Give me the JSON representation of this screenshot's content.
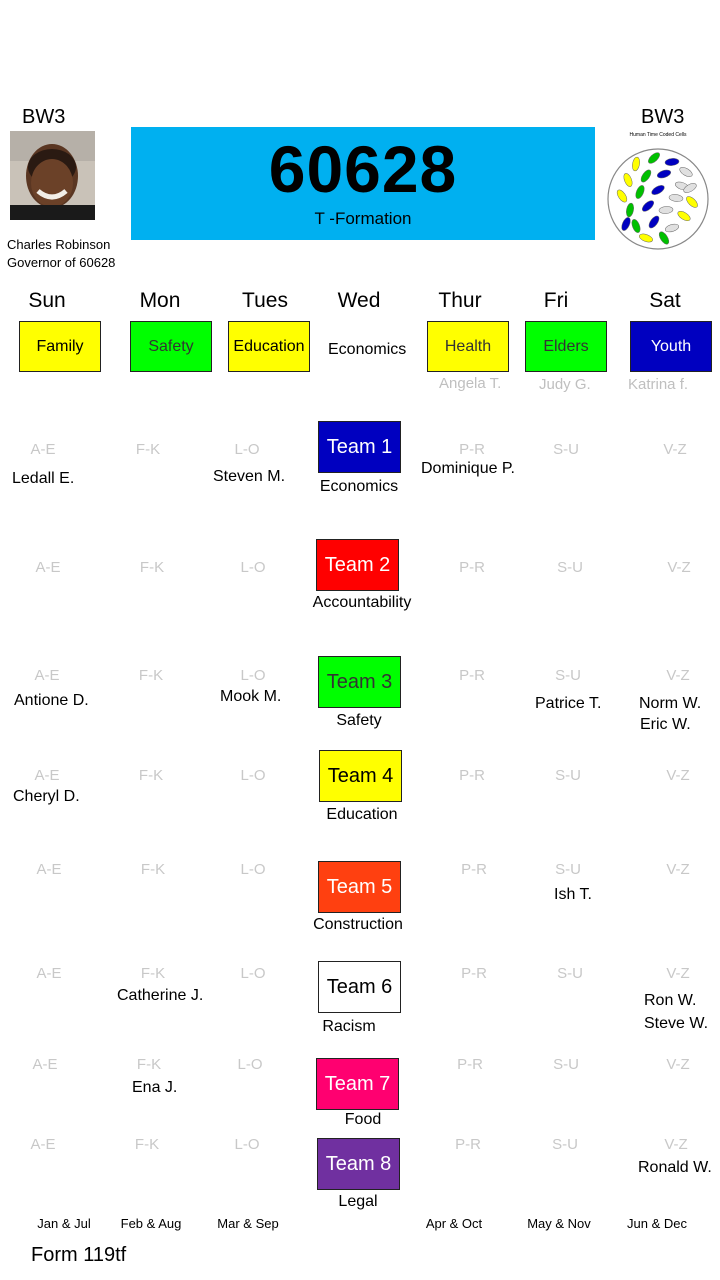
{
  "header": {
    "left_label": "BW3",
    "right_label": "BW3",
    "governor_name": "Charles Robinson",
    "governor_title": "Governor of 60628",
    "zip": "60628",
    "subtitle": "T -Formation",
    "cells_caption": "Human Time Coded Cells"
  },
  "days": [
    "Sun",
    "Mon",
    "Tues",
    "Wed",
    "Thur",
    "Fri",
    "Sat"
  ],
  "day_tags": [
    {
      "label": "Family",
      "color": "#ffff00",
      "text_color": "#000000"
    },
    {
      "label": "Safety",
      "color": "#00ff00",
      "text_color": "#333333"
    },
    {
      "label": "Education",
      "color": "#ffff00",
      "text_color": "#000000"
    },
    {
      "label": "Economics",
      "color": "",
      "text_color": "#000000"
    },
    {
      "label": "Health",
      "color": "#ffff00",
      "text_color": "#333333"
    },
    {
      "label": "Elders",
      "color": "#00ff00",
      "text_color": "#333333"
    },
    {
      "label": "Youth",
      "color": "#0000c0",
      "text_color": "#ffffff"
    }
  ],
  "day_leads": [
    {
      "name": "Angela T."
    },
    {
      "name": "Judy G."
    },
    {
      "name": "Katrina f."
    }
  ],
  "teams": [
    {
      "label": "Team 1",
      "topic": "Economics",
      "color": "#0000c0",
      "text_color": "#ffffff",
      "ranges": [
        "A-E",
        "F-K",
        "L-O",
        "P-R",
        "S-U",
        "V-Z"
      ],
      "members": [
        "Ledall E.",
        "Steven M.",
        "Dominique P."
      ]
    },
    {
      "label": "Team 2",
      "topic": "Accountability",
      "color": "#ff0000",
      "text_color": "#ffffff",
      "ranges": [
        "A-E",
        "F-K",
        "L-O",
        "P-R",
        "S-U",
        "V-Z"
      ],
      "members": []
    },
    {
      "label": "Team 3",
      "topic": "Safety",
      "color": "#00ff00",
      "text_color": "#333333",
      "ranges": [
        "A-E",
        "F-K",
        "L-O",
        "P-R",
        "S-U",
        "V-Z"
      ],
      "members": [
        "Antione D.",
        "Mook M.",
        "Patrice T.",
        "Norm W.",
        "Eric W."
      ]
    },
    {
      "label": "Team 4",
      "topic": "Education",
      "color": "#ffff00",
      "text_color": "#000000",
      "ranges": [
        "A-E",
        "F-K",
        "L-O",
        "P-R",
        "S-U",
        "V-Z"
      ],
      "members": [
        "Cheryl D."
      ]
    },
    {
      "label": "Team 5",
      "topic": "Construction",
      "color": "#ff4010",
      "text_color": "#ffffff",
      "ranges": [
        "A-E",
        "F-K",
        "L-O",
        "P-R",
        "S-U",
        "V-Z"
      ],
      "members": [
        "Ish T."
      ]
    },
    {
      "label": "Team 6",
      "topic": "Racism",
      "color": "#ffffff",
      "text_color": "#000000",
      "ranges": [
        "A-E",
        "F-K",
        "L-O",
        "P-R",
        "S-U",
        "V-Z"
      ],
      "members": [
        "Catherine J.",
        "Ron W.",
        "Steve W."
      ]
    },
    {
      "label": "Team 7",
      "topic": "Food",
      "color": "#ff0070",
      "text_color": "#ffffff",
      "ranges": [
        "A-E",
        "F-K",
        "L-O",
        "P-R",
        "S-U",
        "V-Z"
      ],
      "members": [
        "Ena J."
      ]
    },
    {
      "label": "Team 8",
      "topic": "Legal",
      "color": "#7030a0",
      "text_color": "#ffffff",
      "ranges": [
        "A-E",
        "F-K",
        "L-O",
        "P-R",
        "S-U",
        "V-Z"
      ],
      "members": [
        "Ronald W."
      ]
    }
  ],
  "months": [
    "Jan & Jul",
    "Feb & Aug",
    "Mar & Sep",
    "Apr & Oct",
    "May & Nov",
    "Jun & Dec"
  ],
  "form_label": "Form 119tf"
}
